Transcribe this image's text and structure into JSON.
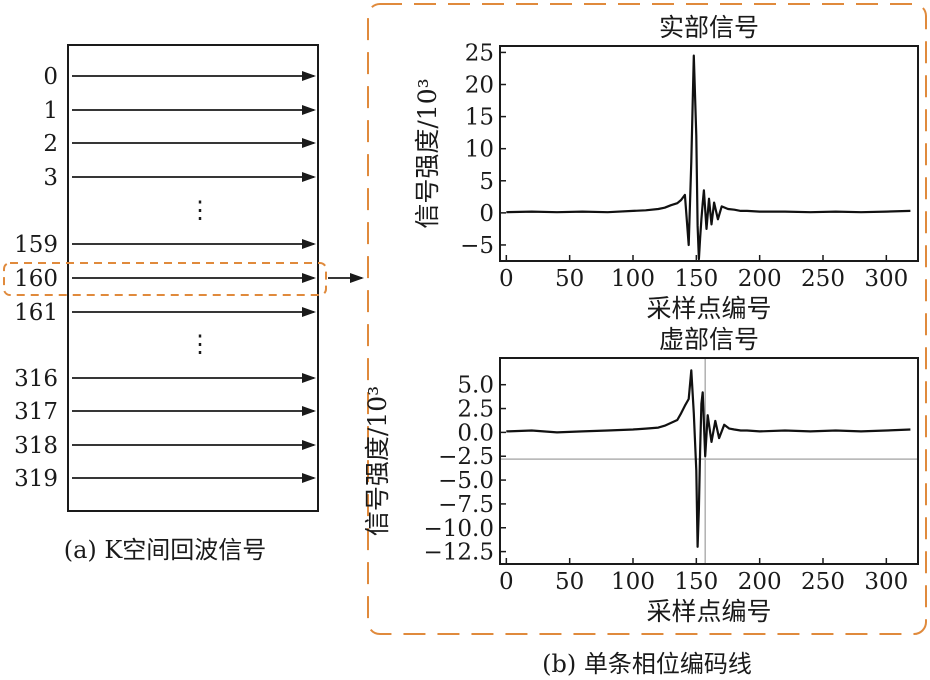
{
  "left_panel": {
    "rows_top": [
      "0",
      "1",
      "2",
      "3"
    ],
    "dots_top": "⋮",
    "rows_mid": [
      "159",
      "160",
      "161"
    ],
    "dots_mid": "⋮",
    "rows_bottom": [
      "316",
      "317",
      "318",
      "319"
    ],
    "highlight_row": "160",
    "caption": "(a) K空间回波信号"
  },
  "right_panel": {
    "caption": "(b) 单条相位编码线"
  },
  "highlight_color": "#e08a3c",
  "chart_data": [
    {
      "type": "line",
      "title": "实部信号",
      "xlabel": "采样点编号",
      "ylabel": "信号强度/10³",
      "xlim": [
        -5,
        325
      ],
      "ylim": [
        -7.5,
        26
      ],
      "xticks": [
        0,
        50,
        100,
        150,
        200,
        250,
        300
      ],
      "yticks": [
        25,
        20,
        15,
        10,
        5,
        0,
        -5
      ],
      "ytick_labels": [
        "25",
        "20",
        "15",
        "10",
        "5",
        "0",
        "−5"
      ],
      "grid": false,
      "series": [
        {
          "x": [
            0,
            20,
            40,
            60,
            80,
            100,
            110,
            120,
            125,
            130,
            135,
            138,
            141,
            144,
            146,
            148,
            150,
            151,
            152,
            153,
            154,
            155,
            156,
            158,
            160,
            162,
            164,
            167,
            170,
            175,
            180,
            185,
            190,
            200,
            220,
            240,
            260,
            280,
            300,
            319
          ],
          "y": [
            0.1,
            0.2,
            0.1,
            0.2,
            0.1,
            0.3,
            0.4,
            0.6,
            0.8,
            1.2,
            1.5,
            2.0,
            2.8,
            -5.0,
            8.0,
            24.5,
            12.0,
            -2.0,
            -7.2,
            -4.0,
            -1.0,
            1.5,
            3.5,
            -2.5,
            2.2,
            -1.8,
            1.6,
            -1.0,
            1.0,
            0.6,
            0.5,
            0.3,
            0.3,
            0.2,
            0.2,
            0.1,
            0.2,
            0.1,
            0.2,
            0.3
          ]
        }
      ]
    },
    {
      "type": "line",
      "title": "虚部信号",
      "xlabel": "采样点编号",
      "ylabel": "信号强度/10³",
      "xlim": [
        -5,
        325
      ],
      "ylim": [
        -13.8,
        7.8
      ],
      "xticks": [
        0,
        50,
        100,
        150,
        200,
        250,
        300
      ],
      "yticks": [
        5.0,
        2.5,
        0.0,
        -2.5,
        -5.0,
        -7.5,
        -10.0,
        -12.5
      ],
      "ytick_labels": [
        "5.0",
        "2.5",
        "0.0",
        "−2.5",
        "−5.0",
        "−7.5",
        "−10.0",
        "−12.5"
      ],
      "grid": false,
      "crosshair": {
        "x": 157,
        "y": -2.8
      },
      "series": [
        {
          "x": [
            0,
            20,
            40,
            60,
            80,
            100,
            110,
            120,
            125,
            130,
            135,
            138,
            141,
            144,
            146,
            148,
            150,
            151,
            152,
            153,
            154,
            155,
            156,
            157,
            159,
            162,
            165,
            168,
            172,
            176,
            180,
            185,
            190,
            200,
            220,
            240,
            260,
            280,
            300,
            319
          ],
          "y": [
            0.1,
            0.2,
            0.0,
            0.1,
            0.2,
            0.3,
            0.4,
            0.5,
            0.7,
            1.0,
            1.3,
            2.0,
            2.8,
            3.5,
            6.5,
            2.0,
            -4.0,
            -12.0,
            -8.0,
            -2.0,
            3.0,
            4.2,
            1.0,
            -2.5,
            1.8,
            -1.0,
            1.2,
            -0.6,
            0.8,
            0.4,
            0.3,
            0.2,
            0.2,
            0.1,
            0.2,
            0.1,
            0.2,
            0.1,
            0.2,
            0.3
          ]
        }
      ]
    }
  ]
}
